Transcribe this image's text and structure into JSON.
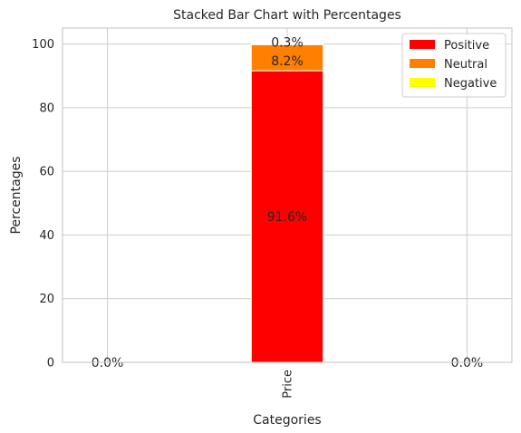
{
  "chart_data": {
    "type": "bar",
    "stacked": true,
    "title": "Stacked Bar Chart with Percentages",
    "xlabel": "Categories",
    "ylabel": "Percentages",
    "x_slots": [
      -1,
      0,
      1
    ],
    "categories": [
      "Price"
    ],
    "category_positions": [
      0
    ],
    "ylim": [
      0,
      105
    ],
    "xlim": [
      -1.25,
      1.25
    ],
    "yticks": [
      0,
      20,
      40,
      60,
      80,
      100
    ],
    "ytick_labels": [
      "0",
      "20",
      "40",
      "60",
      "80",
      "100"
    ],
    "grid": true,
    "legend_position": "top-right",
    "series": [
      {
        "name": "Positive",
        "color": "#ff0000",
        "values": [
          91.6
        ],
        "labels": [
          "91.6%"
        ]
      },
      {
        "name": "Neutral",
        "color": "#ff7f00",
        "values": [
          8.2
        ],
        "labels": [
          "8.2%"
        ]
      },
      {
        "name": "Negative",
        "color": "#ffff00",
        "values": [
          0.3
        ],
        "labels": [
          "0.3%"
        ]
      }
    ],
    "extra_labels": [
      {
        "x": -1,
        "y": 0,
        "text": "0.0%"
      },
      {
        "x": 1,
        "y": 0,
        "text": "0.0%"
      }
    ]
  }
}
